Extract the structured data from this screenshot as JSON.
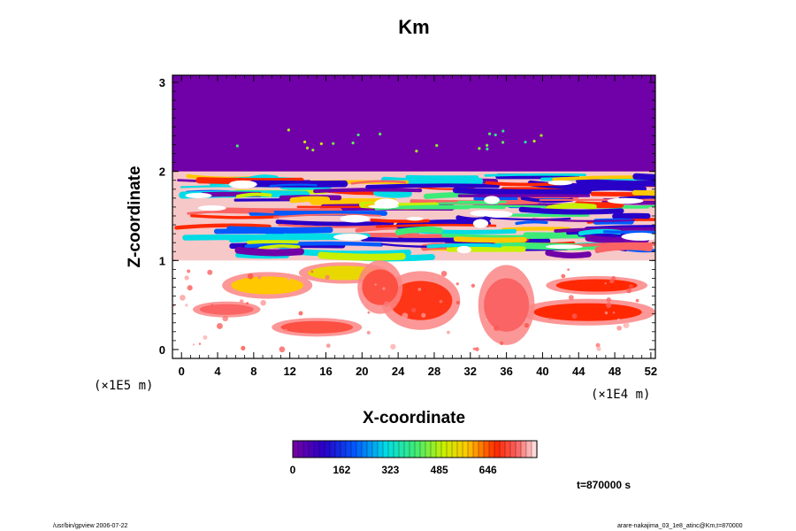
{
  "chart_data": {
    "type": "heatmap",
    "title": "Km",
    "xlabel": "X-coordinate",
    "ylabel": "Z-coordinate",
    "x_multiplier": "(×1E4 m)",
    "y_multiplier": "(×1E5 m)",
    "x_ticks": [
      "0",
      "4",
      "8",
      "12",
      "16",
      "20",
      "24",
      "28",
      "32",
      "36",
      "40",
      "44",
      "48",
      "52"
    ],
    "y_ticks": [
      "0",
      "1",
      "2",
      "3"
    ],
    "xlim": [
      -1,
      52.5
    ],
    "ylim": [
      -0.1,
      3.08
    ],
    "colorbar": {
      "ticks": [
        "0",
        "162",
        "323",
        "485",
        "646"
      ],
      "tick_values": [
        0,
        162,
        323,
        485,
        646
      ],
      "range": [
        0,
        808
      ]
    },
    "time_label": "t=870000 s",
    "footer_left": "/usr/bin/gpview 2006-07-22",
    "footer_right": "arare-nakajima_03_1e8_atinc@Km,t=870000",
    "regions": {
      "upper": {
        "value_range": [
          0,
          20
        ],
        "z_range": [
          2.0,
          3.08
        ],
        "color": "#7000a8"
      },
      "turbulent_layer": {
        "z_range": [
          1.0,
          2.0
        ]
      },
      "lower_patches": {
        "z_range": [
          0.0,
          1.0
        ],
        "value_range": [
          500,
          808
        ]
      }
    },
    "colors": {
      "background": "#ffffff",
      "frame": "#000000",
      "upper_fill": "#7000a8"
    }
  }
}
